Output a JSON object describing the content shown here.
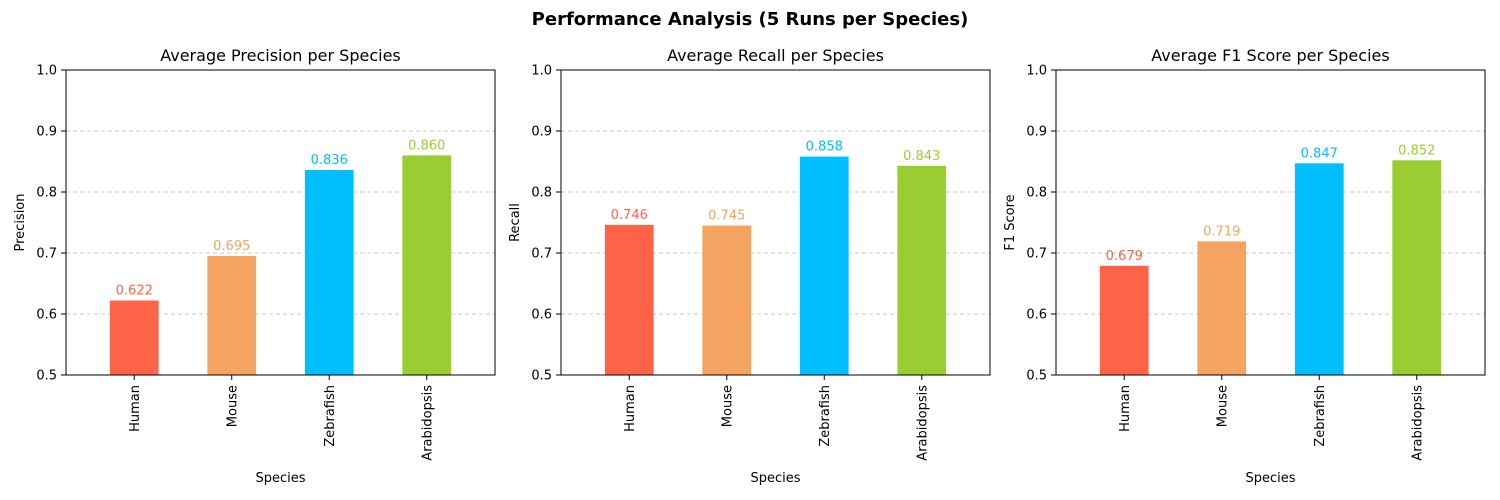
{
  "figure": {
    "title": "Performance Analysis (5 Runs per Species)"
  },
  "chart_data": [
    {
      "type": "bar",
      "title": "Average Precision per Species",
      "xlabel": "Species",
      "ylabel": "Precision",
      "ylim": [
        0.5,
        1.0
      ],
      "yticks": [
        "0.5",
        "0.6",
        "0.7",
        "0.8",
        "0.9",
        "1.0"
      ],
      "grid": "y-dashed",
      "categories": [
        "Human",
        "Mouse",
        "Zebrafish",
        "Arabidopsis"
      ],
      "values": [
        0.622,
        0.695,
        0.836,
        0.86
      ],
      "value_labels": [
        "0.622",
        "0.695",
        "0.836",
        "0.860"
      ],
      "colors": [
        "#ff6347",
        "#f4a460",
        "#00bfff",
        "#9acd32"
      ]
    },
    {
      "type": "bar",
      "title": "Average Recall per Species",
      "xlabel": "Species",
      "ylabel": "Recall",
      "ylim": [
        0.5,
        1.0
      ],
      "yticks": [
        "0.5",
        "0.6",
        "0.7",
        "0.8",
        "0.9",
        "1.0"
      ],
      "grid": "y-dashed",
      "categories": [
        "Human",
        "Mouse",
        "Zebrafish",
        "Arabidopsis"
      ],
      "values": [
        0.746,
        0.745,
        0.858,
        0.843
      ],
      "value_labels": [
        "0.746",
        "0.745",
        "0.858",
        "0.843"
      ],
      "colors": [
        "#ff6347",
        "#f4a460",
        "#00bfff",
        "#9acd32"
      ]
    },
    {
      "type": "bar",
      "title": "Average F1 Score per Species",
      "xlabel": "Species",
      "ylabel": "F1 Score",
      "ylim": [
        0.5,
        1.0
      ],
      "yticks": [
        "0.5",
        "0.6",
        "0.7",
        "0.8",
        "0.9",
        "1.0"
      ],
      "grid": "y-dashed",
      "categories": [
        "Human",
        "Mouse",
        "Zebrafish",
        "Arabidopsis"
      ],
      "values": [
        0.679,
        0.719,
        0.847,
        0.852
      ],
      "value_labels": [
        "0.679",
        "0.719",
        "0.847",
        "0.852"
      ],
      "colors": [
        "#ff6347",
        "#f4a460",
        "#00bfff",
        "#9acd32"
      ]
    }
  ]
}
